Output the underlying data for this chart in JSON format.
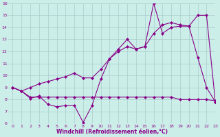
{
  "line_color": "#880088",
  "bg_color": "#cceee8",
  "grid_color": "#aacccc",
  "xlabel": "Windchill (Refroidissement éolien,°C)",
  "ylim": [
    6,
    16
  ],
  "xlim": [
    -0.5,
    23
  ],
  "yticks": [
    6,
    7,
    8,
    9,
    10,
    11,
    12,
    13,
    14,
    15,
    16
  ],
  "xticks": [
    0,
    1,
    2,
    3,
    4,
    5,
    6,
    7,
    8,
    9,
    10,
    11,
    12,
    13,
    14,
    15,
    16,
    17,
    18,
    19,
    20,
    21,
    22,
    23
  ],
  "marker": "D",
  "markersize": 2.5,
  "linewidth": 0.8,
  "line1_x": [
    0,
    1,
    2,
    3,
    4,
    5,
    6,
    7,
    8,
    9,
    10,
    11,
    12,
    13,
    14,
    15,
    16,
    17,
    18,
    19,
    20,
    21,
    22,
    23
  ],
  "line1_y": [
    9.0,
    8.7,
    8.1,
    8.3,
    7.6,
    7.4,
    7.5,
    7.5,
    6.1,
    7.5,
    9.7,
    11.4,
    12.2,
    13.0,
    12.2,
    12.4,
    16.0,
    13.5,
    14.0,
    14.1,
    14.1,
    11.5,
    9.0,
    7.8
  ],
  "line2_x": [
    0,
    1,
    2,
    3,
    4,
    5,
    6,
    7,
    8,
    9,
    10,
    11,
    12,
    13,
    14,
    15,
    16,
    17,
    18,
    19,
    20,
    21,
    22,
    23
  ],
  "line2_y": [
    9.0,
    8.7,
    9.0,
    9.3,
    9.5,
    9.7,
    9.9,
    10.2,
    9.8,
    9.8,
    10.5,
    11.4,
    12.0,
    12.4,
    12.2,
    12.4,
    13.5,
    14.2,
    14.4,
    14.2,
    14.1,
    15.0,
    15.0,
    7.8
  ],
  "line3_x": [
    0,
    1,
    2,
    3,
    4,
    5,
    6,
    7,
    8,
    9,
    10,
    11,
    12,
    13,
    14,
    15,
    16,
    17,
    18,
    19,
    20,
    21,
    22,
    23
  ],
  "line3_y": [
    9.0,
    8.7,
    8.2,
    8.2,
    8.2,
    8.2,
    8.2,
    8.2,
    8.2,
    8.2,
    8.2,
    8.2,
    8.2,
    8.2,
    8.2,
    8.2,
    8.2,
    8.2,
    8.2,
    8.0,
    8.0,
    8.0,
    8.0,
    7.9
  ]
}
